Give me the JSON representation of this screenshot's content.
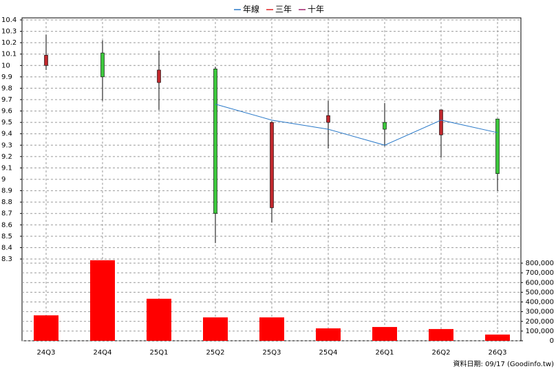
{
  "chart_data": {
    "type": "candlestick",
    "categories": [
      "24Q3",
      "24Q4",
      "25Q1",
      "25Q2",
      "25Q3",
      "25Q4",
      "26Q1",
      "26Q2",
      "26Q3"
    ],
    "open": [
      10.0,
      10.11,
      9.85,
      9.97,
      8.75,
      9.5,
      9.5,
      9.39,
      9.53
    ],
    "high": [
      10.27,
      10.22,
      10.13,
      9.99,
      9.51,
      9.69,
      9.67,
      9.61,
      9.53
    ],
    "low": [
      9.96,
      9.69,
      9.61,
      8.44,
      8.62,
      9.27,
      9.29,
      9.19,
      8.9
    ],
    "close": [
      10.09,
      9.9,
      9.96,
      8.7,
      9.5,
      9.56,
      9.44,
      9.61,
      9.05
    ],
    "up_color": "#c0282d",
    "down_color": "#3cc83c",
    "series": [
      {
        "name": "年線",
        "color": "#2878c8",
        "values": [
          null,
          null,
          null,
          9.66,
          9.52,
          9.44,
          9.3,
          9.52,
          9.41
        ]
      },
      {
        "name": "三年",
        "color": "#e02020",
        "values": [
          null,
          null,
          null,
          null,
          null,
          null,
          null,
          null,
          null
        ]
      },
      {
        "name": "十年",
        "color": "#a0206a",
        "values": [
          null,
          null,
          null,
          null,
          null,
          null,
          null,
          null,
          null
        ]
      }
    ],
    "volume": {
      "color": "#ff0000",
      "values": [
        262000,
        830000,
        433000,
        241000,
        241000,
        128000,
        142000,
        121000,
        64000
      ]
    },
    "ylim": [
      8.3,
      10.4
    ],
    "yticks": [
      8.3,
      8.4,
      8.5,
      8.6,
      8.7,
      8.8,
      8.9,
      9,
      9.1,
      9.2,
      9.3,
      9.4,
      9.5,
      9.6,
      9.7,
      9.8,
      9.9,
      10,
      10.1,
      10.2,
      10.3,
      10.4
    ],
    "y2lim": [
      0,
      800000
    ],
    "y2ticks": [
      0,
      {
        "value": 100000,
        "label": "100,000"
      },
      {
        "value": 200000,
        "label": "200,000"
      },
      {
        "value": 300000,
        "label": "300,000"
      },
      {
        "value": 400000,
        "label": "400,000"
      },
      {
        "value": 500000,
        "label": "500,000"
      },
      {
        "value": 600000,
        "label": "600,000"
      },
      {
        "value": 700000,
        "label": "700,000"
      },
      {
        "value": 800000,
        "label": "800,000"
      }
    ],
    "grid": true,
    "source": "資料日期: 09/17  (Goodinfo.tw)"
  }
}
